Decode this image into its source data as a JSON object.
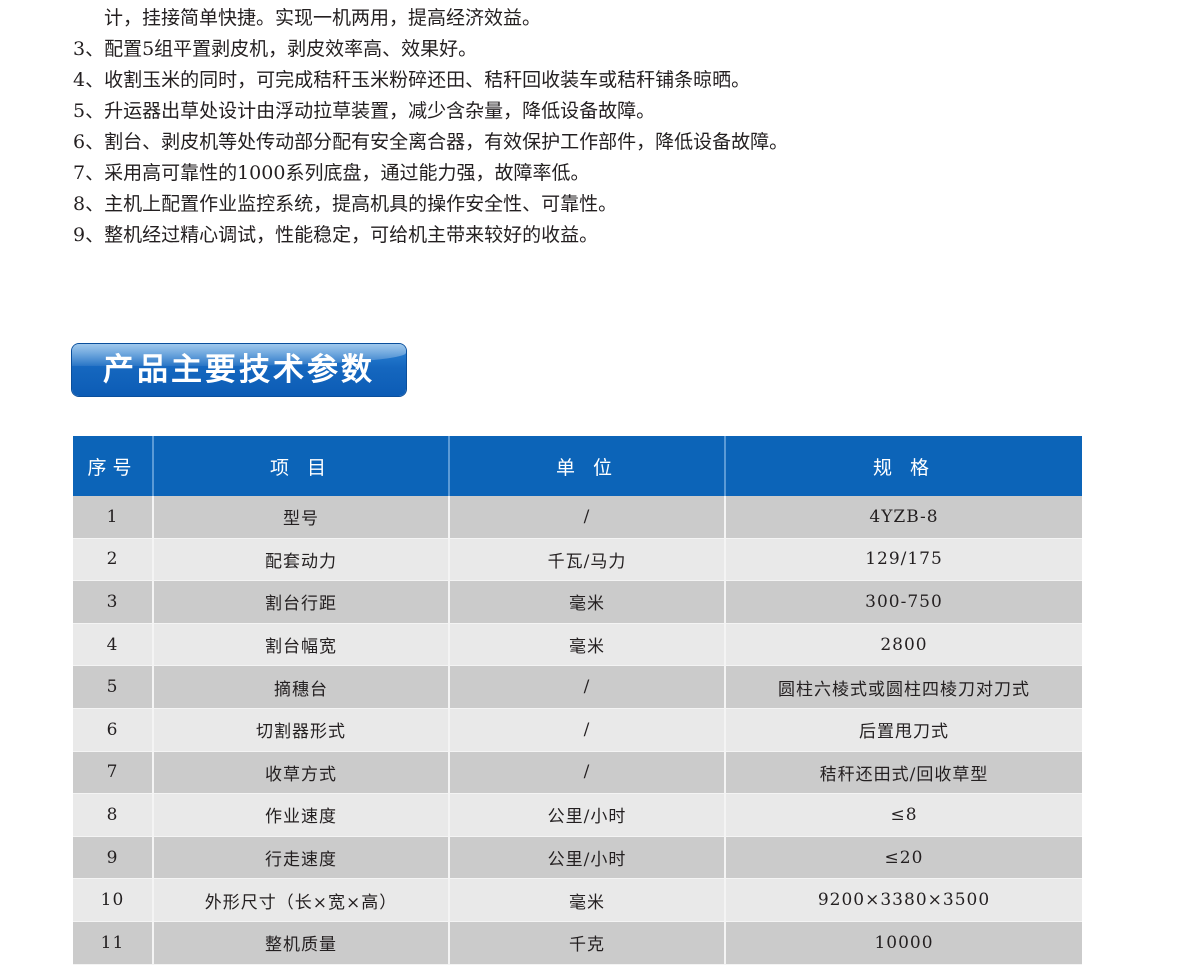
{
  "features": [
    "计，挂接简单快捷。实现一机两用，提高经济效益。",
    "3、配置5组平置剥皮机，剥皮效率高、效果好。",
    "4、收割玉米的同时，可完成秸秆玉米粉碎还田、秸秆回收装车或秸秆铺条晾晒。",
    "5、升运器出草处设计由浮动拉草装置，减少含杂量，降低设备故障。",
    "6、割台、剥皮机等处传动部分配有安全离合器，有效保护工作部件，降低设备故障。",
    "7、采用高可靠性的1000系列底盘，通过能力强，故障率低。",
    "8、主机上配置作业监控系统，提高机具的操作安全性、可靠性。",
    "9、整机经过精心调试，性能稳定，可给机主带来较好的收益。"
  ],
  "section_title": "产品主要技术参数",
  "table": {
    "headers": [
      "序号",
      "项 目",
      "单 位",
      "规 格"
    ],
    "rows": [
      [
        "1",
        "型号",
        "/",
        "4YZB-8"
      ],
      [
        "2",
        "配套动力",
        "千瓦/马力",
        "129/175"
      ],
      [
        "3",
        "割台行距",
        "毫米",
        "300-750"
      ],
      [
        "4",
        "割台幅宽",
        "毫米",
        "2800"
      ],
      [
        "5",
        "摘穗台",
        "/",
        "圆柱六棱式或圆柱四棱刀对刀式"
      ],
      [
        "6",
        "切割器形式",
        "/",
        "后置甩刀式"
      ],
      [
        "7",
        "收草方式",
        "/",
        "秸秆还田式/回收草型"
      ],
      [
        "8",
        "作业速度",
        "公里/小时",
        "≤8"
      ],
      [
        "9",
        "行走速度",
        "公里/小时",
        "≤20"
      ],
      [
        "10",
        "外形尺寸（长×宽×高）",
        "毫米",
        "9200×3380×3500"
      ],
      [
        "11",
        "整机质量",
        "千克",
        "10000"
      ]
    ]
  }
}
